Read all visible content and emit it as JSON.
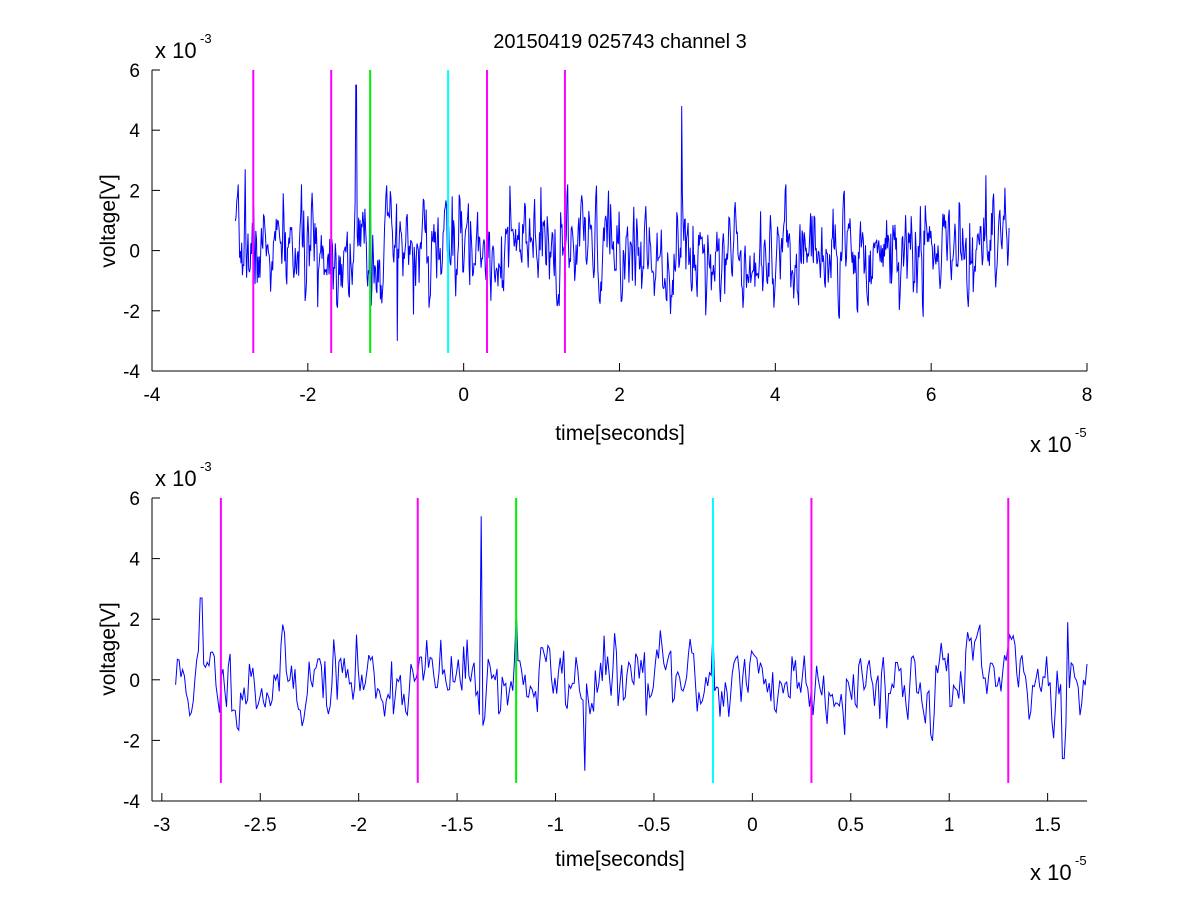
{
  "chart_data": [
    {
      "type": "line",
      "title": "20150419 025743 channel 3",
      "xlabel": "time[seconds]",
      "ylabel": "voltage[V]",
      "x_multiplier": "x 10",
      "x_exponent": "-5",
      "y_multiplier": "x 10",
      "y_exponent": "-3",
      "xlim": [
        -4,
        8
      ],
      "ylim": [
        -4,
        6
      ],
      "xticks": [
        "-4",
        "-2",
        "0",
        "2",
        "4",
        "6",
        "8"
      ],
      "yticks": [
        "-4",
        "-2",
        "0",
        "2",
        "4",
        "6"
      ],
      "grid": false,
      "series": [
        {
          "color": "#0000ff",
          "x_range": [
            -2.93,
            7.0
          ],
          "points": 1100,
          "noise_std": 0.8,
          "spikes": [
            {
              "x": -2.8,
              "y": 2.7
            },
            {
              "x": -1.38,
              "y": 5.5
            },
            {
              "x": -1.2,
              "y": 2.3
            },
            {
              "x": -0.15,
              "y": 1.8
            },
            {
              "x": 2.8,
              "y": 4.8
            },
            {
              "x": 6.7,
              "y": 2.5
            },
            {
              "x": -0.85,
              "y": -3.0
            },
            {
              "x": 5.9,
              "y": -2.2
            }
          ]
        }
      ],
      "markers": [
        {
          "x": -2.7,
          "color": "#ff00ff",
          "ymin": -3.4,
          "ymax": 6
        },
        {
          "x": -1.7,
          "color": "#ff00ff",
          "ymin": -3.4,
          "ymax": 6
        },
        {
          "x": -1.2,
          "color": "#00ee00",
          "ymin": -3.4,
          "ymax": 6
        },
        {
          "x": -0.2,
          "color": "#00ffff",
          "ymin": -3.4,
          "ymax": 6
        },
        {
          "x": 0.3,
          "color": "#ff00ff",
          "ymin": -3.4,
          "ymax": 6
        },
        {
          "x": 1.3,
          "color": "#ff00ff",
          "ymin": -3.4,
          "ymax": 6
        }
      ]
    },
    {
      "type": "line",
      "title": "",
      "xlabel": "time[seconds]",
      "ylabel": "voltage[V]",
      "x_multiplier": "x 10",
      "x_exponent": "-5",
      "y_multiplier": "x 10",
      "y_exponent": "-3",
      "xlim": [
        -3.05,
        1.7
      ],
      "ylim": [
        -4,
        6
      ],
      "xticks": [
        "-3",
        "-2.5",
        "-2",
        "-1.5",
        "-1",
        "-0.5",
        "0",
        "0.5",
        "1",
        "1.5"
      ],
      "yticks": [
        "-4",
        "-2",
        "0",
        "2",
        "4",
        "6"
      ],
      "grid": false,
      "series": [
        {
          "color": "#0000ff",
          "x_range": [
            -2.93,
            1.7
          ],
          "points": 520,
          "noise_std": 0.7,
          "spikes": [
            {
              "x": -2.8,
              "y": 2.7
            },
            {
              "x": -1.38,
              "y": 5.4
            },
            {
              "x": -1.2,
              "y": 2.3
            },
            {
              "x": -0.85,
              "y": -3.0
            },
            {
              "x": -0.2,
              "y": 1.7
            },
            {
              "x": 1.58,
              "y": -2.6
            },
            {
              "x": 1.6,
              "y": 1.9
            }
          ]
        }
      ],
      "markers": [
        {
          "x": -2.7,
          "color": "#ff00ff",
          "ymin": -3.4,
          "ymax": 6
        },
        {
          "x": -1.7,
          "color": "#ff00ff",
          "ymin": -3.4,
          "ymax": 6
        },
        {
          "x": -1.2,
          "color": "#00ee00",
          "ymin": -3.4,
          "ymax": 6
        },
        {
          "x": -0.2,
          "color": "#00ffff",
          "ymin": -3.4,
          "ymax": 6
        },
        {
          "x": 0.3,
          "color": "#ff00ff",
          "ymin": -3.4,
          "ymax": 6
        },
        {
          "x": 1.3,
          "color": "#ff00ff",
          "ymin": -3.4,
          "ymax": 6
        }
      ]
    }
  ]
}
